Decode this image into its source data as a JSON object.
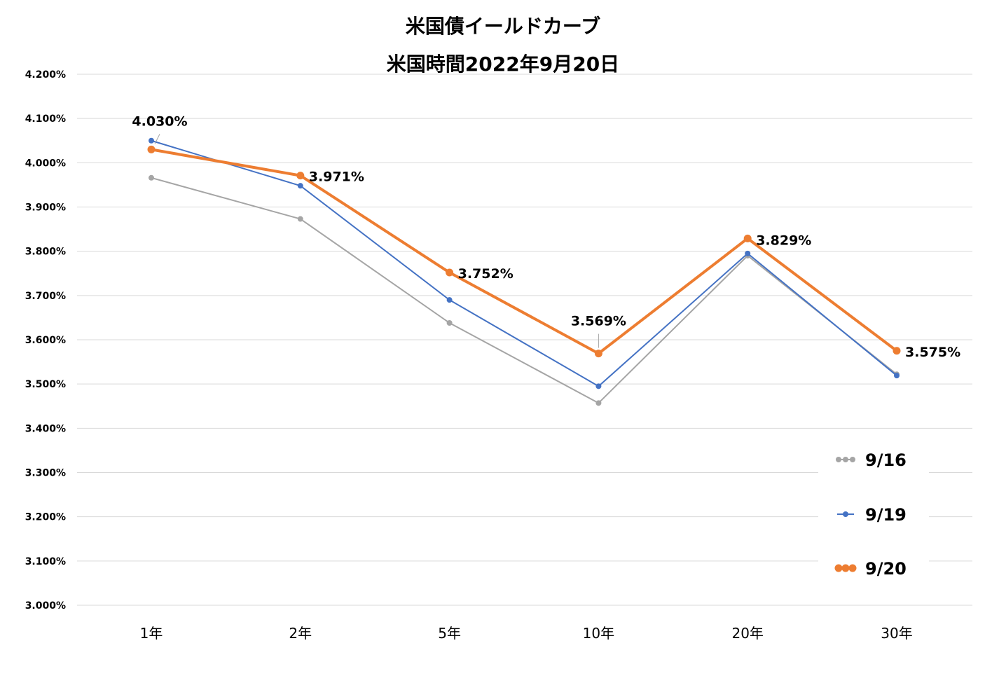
{
  "chart_data": {
    "type": "line",
    "title": "米国債イールドカーブ",
    "subtitle": "米国時間2022年9月20日",
    "categories": [
      "1年",
      "2年",
      "5年",
      "10年",
      "20年",
      "30年"
    ],
    "ylim": [
      3.0,
      4.2
    ],
    "ytick_step": 0.1,
    "y_format": "percent_3dp",
    "grid": true,
    "legend_position": "right",
    "series": [
      {
        "name": "9/16",
        "color": "#a5a5a5",
        "values": [
          3.966,
          3.873,
          3.638,
          3.457,
          3.79,
          3.522
        ]
      },
      {
        "name": "9/19",
        "color": "#4472c4",
        "values": [
          4.05,
          3.948,
          3.69,
          3.495,
          3.795,
          3.519
        ]
      },
      {
        "name": "9/20",
        "color": "#ed7d31",
        "values": [
          4.03,
          3.971,
          3.752,
          3.569,
          3.829,
          3.575
        ],
        "data_labels": [
          "4.030%",
          "3.971%",
          "3.752%",
          "3.569%",
          "3.829%",
          "3.575%"
        ]
      }
    ]
  }
}
